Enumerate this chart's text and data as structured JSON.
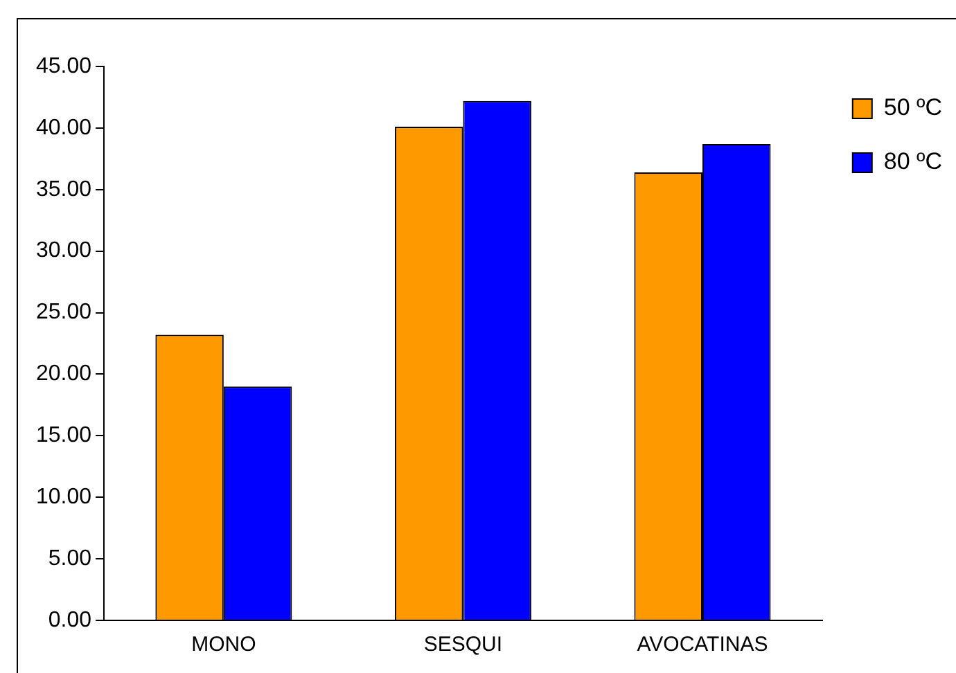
{
  "chart_data": {
    "type": "bar",
    "categories": [
      "MONO",
      "SESQUI",
      "AVOCATINAS"
    ],
    "series": [
      {
        "name": "50 ºC",
        "color": "#ff9900",
        "values": [
          23.2,
          40.1,
          36.4
        ]
      },
      {
        "name": "80 ºC",
        "color": "#0000ff",
        "values": [
          19.0,
          42.2,
          38.7
        ]
      }
    ],
    "ylim": [
      0,
      45
    ],
    "yticks": [
      {
        "value": 0,
        "label": "0.00"
      },
      {
        "value": 5,
        "label": "5.00"
      },
      {
        "value": 10,
        "label": "10.00"
      },
      {
        "value": 15,
        "label": "15.00"
      },
      {
        "value": 20,
        "label": "20.00"
      },
      {
        "value": 25,
        "label": "25.00"
      },
      {
        "value": 30,
        "label": "30.00"
      },
      {
        "value": 35,
        "label": "35.00"
      },
      {
        "value": 40,
        "label": "40.00"
      },
      {
        "value": 45,
        "label": "45.00"
      }
    ],
    "grid": false,
    "legend": "top right"
  }
}
